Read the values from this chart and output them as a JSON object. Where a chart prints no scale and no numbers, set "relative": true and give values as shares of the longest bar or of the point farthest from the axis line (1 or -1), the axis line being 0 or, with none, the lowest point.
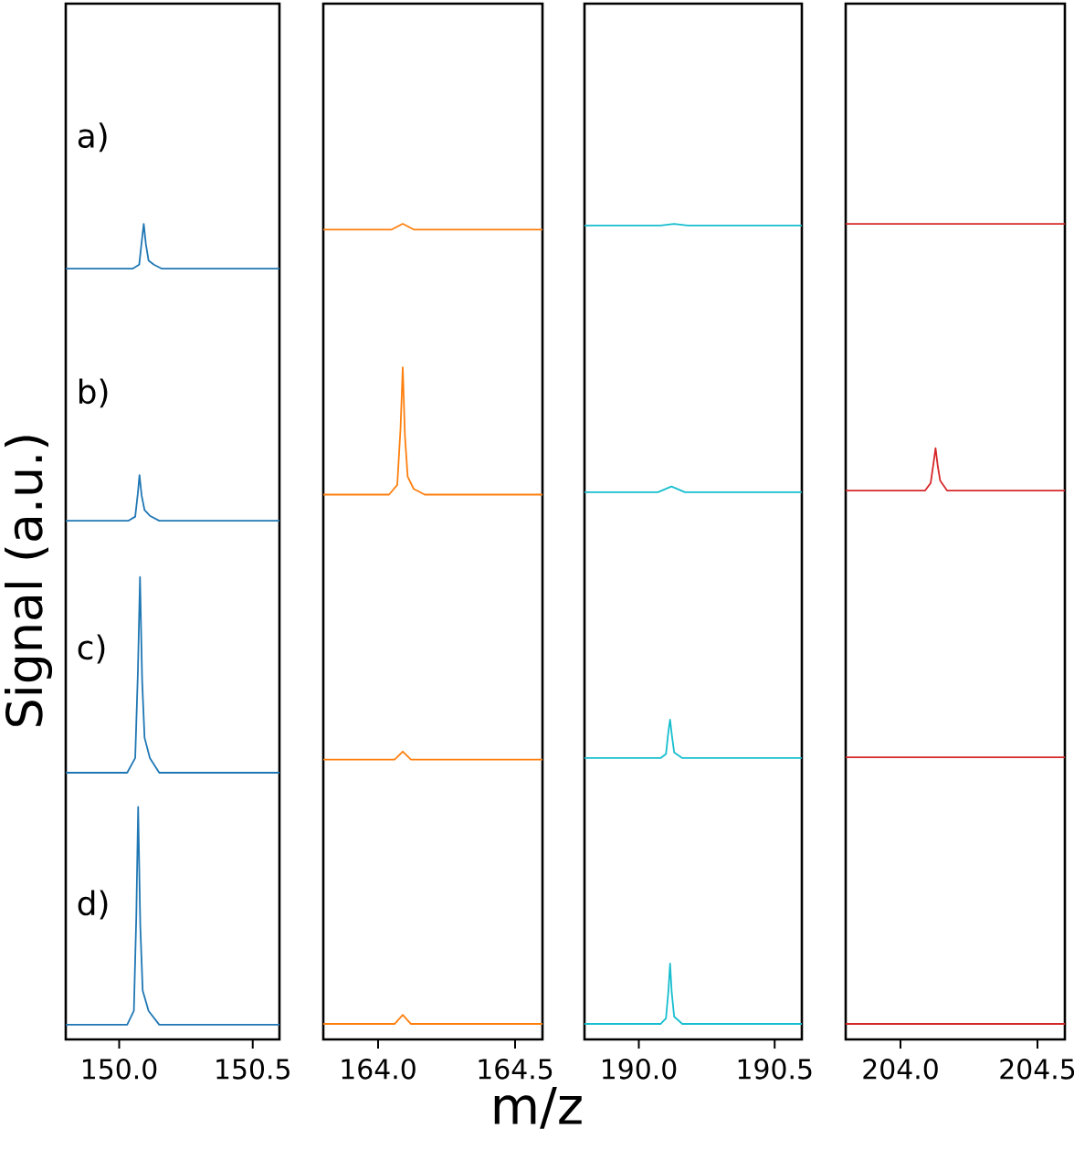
{
  "chart_data": [
    {
      "type": "line",
      "relative": true,
      "xlabel": "m/z",
      "ylabel": "Signal (a.u.)",
      "annotations": [
        "a)",
        "b)",
        "c)",
        "d)"
      ],
      "xlim": [
        149.8,
        150.6
      ],
      "xticks": [
        {
          "value": 150,
          "label": "150.0"
        },
        150.5
      ],
      "series": [
        {
          "color": "#1f77b4",
          "x": [
            149.8,
            150.05,
            150.075,
            150.085,
            150.092,
            150.1,
            150.11,
            150.13,
            150.16,
            150.6
          ],
          "values": [
            0.945,
            0.945,
            0.95,
            0.98,
            1.0,
            0.975,
            0.955,
            0.95,
            0.945,
            0.945
          ]
        },
        {
          "color": "#1f77b4",
          "x": [
            149.8,
            150.035,
            150.06,
            150.07,
            150.076,
            150.084,
            150.095,
            150.115,
            150.15,
            150.6
          ],
          "values": [
            0.636,
            0.636,
            0.641,
            0.67,
            0.692,
            0.667,
            0.649,
            0.642,
            0.636,
            0.636
          ]
        },
        {
          "color": "#1f77b4",
          "x": [
            149.8,
            150.03,
            150.06,
            150.07,
            150.078,
            150.086,
            150.095,
            150.115,
            150.15,
            150.6
          ],
          "values": [
            0.327,
            0.327,
            0.345,
            0.45,
            0.567,
            0.44,
            0.37,
            0.345,
            0.327,
            0.327
          ]
        },
        {
          "color": "#1f77b4",
          "x": [
            149.8,
            150.03,
            150.055,
            150.064,
            150.071,
            150.079,
            150.088,
            150.11,
            150.15,
            150.6
          ],
          "values": [
            0.018,
            0.018,
            0.035,
            0.15,
            0.285,
            0.14,
            0.06,
            0.035,
            0.018,
            0.018
          ]
        }
      ]
    },
    {
      "type": "line",
      "relative": true,
      "xlim": [
        163.8,
        164.6
      ],
      "xticks": [
        {
          "value": 164,
          "label": "164.0"
        },
        164.5
      ],
      "series": [
        {
          "color": "#ff7f0e",
          "x": [
            163.8,
            164.05,
            164.09,
            164.13,
            164.6
          ],
          "values": [
            0.993,
            0.993,
            1.0,
            0.993,
            0.993
          ]
        },
        {
          "color": "#ff7f0e",
          "x": [
            163.8,
            164.04,
            164.07,
            164.082,
            164.09,
            164.098,
            164.108,
            164.13,
            164.17,
            164.6
          ],
          "values": [
            0.668,
            0.668,
            0.68,
            0.75,
            0.824,
            0.74,
            0.69,
            0.675,
            0.668,
            0.668
          ]
        },
        {
          "color": "#ff7f0e",
          "x": [
            163.8,
            164.06,
            164.09,
            164.12,
            164.6
          ],
          "values": [
            0.343,
            0.343,
            0.353,
            0.343,
            0.343
          ]
        },
        {
          "color": "#ff7f0e",
          "x": [
            163.8,
            164.06,
            164.09,
            164.12,
            164.6
          ],
          "values": [
            0.019,
            0.019,
            0.03,
            0.019,
            0.019
          ]
        }
      ]
    },
    {
      "type": "line",
      "relative": true,
      "xlim": [
        189.8,
        190.6
      ],
      "xticks": [
        {
          "value": 190,
          "label": "190.0"
        },
        190.5
      ],
      "series": [
        {
          "color": "#17becf",
          "x": [
            189.8,
            190.08,
            190.13,
            190.18,
            190.6
          ],
          "values": [
            0.998,
            0.998,
            1.0,
            0.998,
            0.998
          ]
        },
        {
          "color": "#17becf",
          "x": [
            189.8,
            190.07,
            190.12,
            190.17,
            190.6
          ],
          "values": [
            0.671,
            0.671,
            0.678,
            0.671,
            0.671
          ]
        },
        {
          "color": "#17becf",
          "x": [
            189.8,
            190.08,
            190.1,
            190.108,
            190.115,
            190.122,
            190.13,
            190.16,
            190.6
          ],
          "values": [
            0.345,
            0.345,
            0.35,
            0.375,
            0.392,
            0.372,
            0.352,
            0.345,
            0.345
          ]
        },
        {
          "color": "#17becf",
          "x": [
            189.8,
            190.08,
            190.1,
            190.109,
            190.115,
            190.121,
            190.13,
            190.16,
            190.6
          ],
          "values": [
            0.019,
            0.019,
            0.026,
            0.06,
            0.093,
            0.058,
            0.028,
            0.019,
            0.019
          ]
        }
      ]
    },
    {
      "type": "line",
      "relative": true,
      "xlim": [
        203.8,
        204.6
      ],
      "xticks": [
        {
          "value": 204,
          "label": "204.0"
        },
        204.5
      ],
      "series": [
        {
          "color": "#d62728",
          "x": [
            203.8,
            204.6
          ],
          "values": [
            1.0,
            1.0
          ]
        },
        {
          "color": "#d62728",
          "x": [
            203.8,
            204.09,
            204.11,
            204.12,
            204.128,
            204.136,
            204.145,
            204.17,
            204.6
          ],
          "values": [
            0.673,
            0.673,
            0.682,
            0.705,
            0.725,
            0.703,
            0.685,
            0.673,
            0.673
          ]
        },
        {
          "color": "#d62728",
          "x": [
            203.8,
            204.6
          ],
          "values": [
            0.346,
            0.346
          ]
        },
        {
          "color": "#d62728",
          "x": [
            203.8,
            204.6
          ],
          "values": [
            0.019,
            0.019
          ]
        }
      ]
    }
  ]
}
